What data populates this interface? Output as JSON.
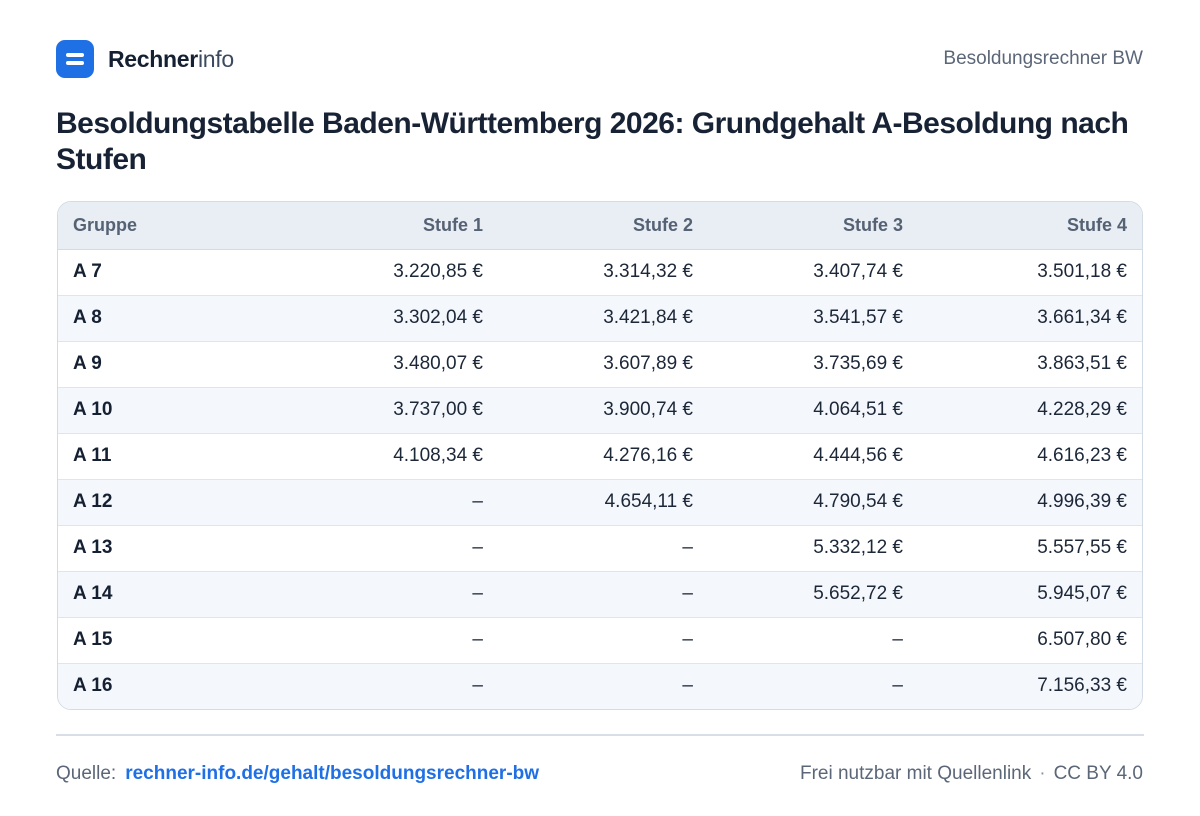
{
  "header": {
    "brand_strong": "Rechner",
    "brand_light": "info",
    "right_label": "Besoldungsrechner BW"
  },
  "title": "Besoldungstabelle Baden-Württemberg 2026: Grundgehalt A-Besoldung nach Stufen",
  "table": {
    "columns": [
      "Gruppe",
      "Stufe 1",
      "Stufe 2",
      "Stufe 3",
      "Stufe 4"
    ],
    "rows": [
      [
        "A 7",
        "3.220,85 €",
        "3.314,32 €",
        "3.407,74 €",
        "3.501,18 €"
      ],
      [
        "A 8",
        "3.302,04 €",
        "3.421,84 €",
        "3.541,57 €",
        "3.661,34 €"
      ],
      [
        "A 9",
        "3.480,07 €",
        "3.607,89 €",
        "3.735,69 €",
        "3.863,51 €"
      ],
      [
        "A 10",
        "3.737,00 €",
        "3.900,74 €",
        "4.064,51 €",
        "4.228,29 €"
      ],
      [
        "A 11",
        "4.108,34 €",
        "4.276,16 €",
        "4.444,56 €",
        "4.616,23 €"
      ],
      [
        "A 12",
        "–",
        "4.654,11 €",
        "4.790,54 €",
        "4.996,39 €"
      ],
      [
        "A 13",
        "–",
        "–",
        "5.332,12 €",
        "5.557,55 €"
      ],
      [
        "A 14",
        "–",
        "–",
        "5.652,72 €",
        "5.945,07 €"
      ],
      [
        "A 15",
        "–",
        "–",
        "–",
        "6.507,80 €"
      ],
      [
        "A 16",
        "–",
        "–",
        "–",
        "7.156,33 €"
      ]
    ]
  },
  "footer": {
    "source_label": "Quelle:",
    "source_link": "rechner-info.de/gehalt/besoldungsrechner-bw",
    "license_text": "Frei nutzbar mit Quellenlink",
    "separator": "·",
    "license": "CC BY 4.0"
  },
  "colors": {
    "accent": "#1f6fe5",
    "header_bg": "#e9eef5",
    "stripe_bg": "#f4f7fb",
    "text": "#172235",
    "muted": "#5b6778"
  },
  "icons": {
    "logo": "rechner-logo-icon"
  }
}
